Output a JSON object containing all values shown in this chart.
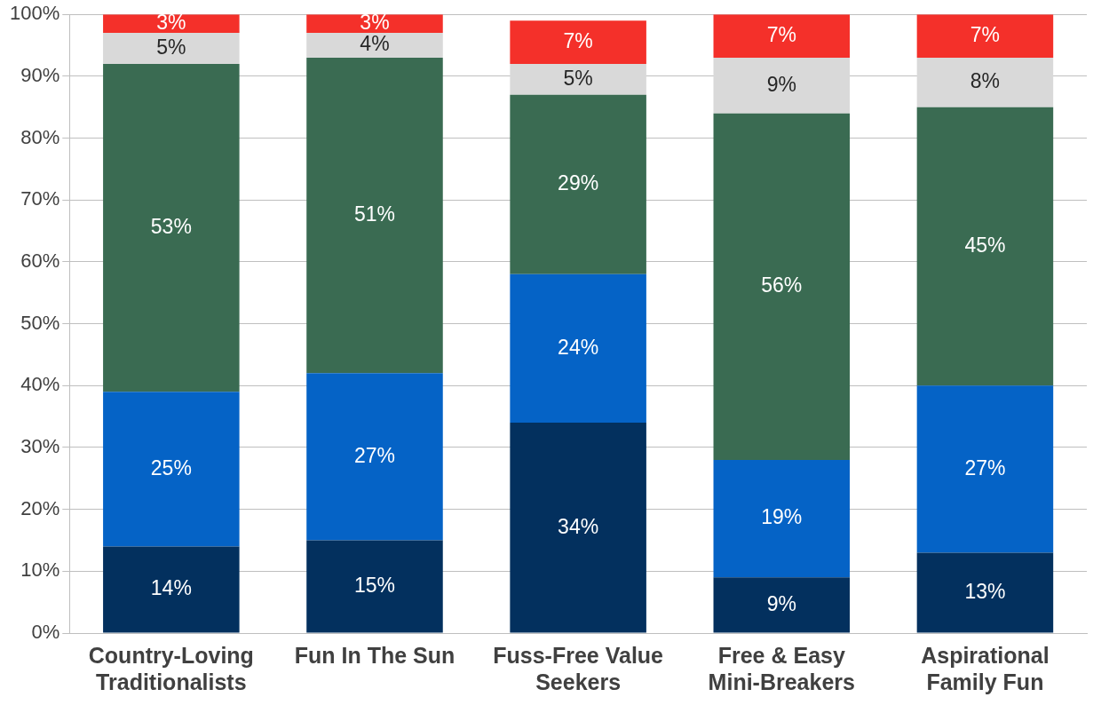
{
  "chart_data": {
    "type": "bar",
    "stacked": true,
    "categories": [
      "Country-Loving Traditionalists",
      "Fun In The Sun",
      "Fuss-Free Value Seekers",
      "Free & Easy Mini-Breakers",
      "Aspirational Family Fun"
    ],
    "series": [
      {
        "color": "#03305e",
        "values": [
          14,
          15,
          34,
          9,
          13
        ],
        "value_labels": [
          "14%",
          "15%",
          "34%",
          "9%",
          "13%"
        ]
      },
      {
        "color": "#0563c6",
        "values": [
          25,
          27,
          24,
          19,
          27
        ],
        "value_labels": [
          "25%",
          "27%",
          "24%",
          "19%",
          "27%"
        ]
      },
      {
        "color": "#3a6b52",
        "values": [
          53,
          51,
          29,
          56,
          45
        ],
        "value_labels": [
          "53%",
          "51%",
          "29%",
          "56%",
          "45%"
        ]
      },
      {
        "color": "#d9d9d9",
        "values": [
          5,
          4,
          5,
          9,
          8
        ],
        "value_labels": [
          "5%",
          "4%",
          "5%",
          "9%",
          "8%"
        ]
      },
      {
        "color": "#f4302a",
        "values": [
          3,
          3,
          7,
          7,
          7
        ],
        "value_labels": [
          "3%",
          "3%",
          "7%",
          "7%",
          "7%"
        ]
      }
    ],
    "ylim": [
      0,
      100
    ],
    "yticks": [
      {
        "value": 0,
        "label": "0%"
      },
      {
        "value": 10,
        "label": "10%"
      },
      {
        "value": 20,
        "label": "20%"
      },
      {
        "value": 30,
        "label": "30%"
      },
      {
        "value": 40,
        "label": "40%"
      },
      {
        "value": 50,
        "label": "50%"
      },
      {
        "value": 60,
        "label": "60%"
      },
      {
        "value": 70,
        "label": "70%"
      },
      {
        "value": 80,
        "label": "80%"
      },
      {
        "value": 90,
        "label": "90%"
      },
      {
        "value": 100,
        "label": "100%"
      }
    ],
    "grid": "y",
    "legend": false
  }
}
